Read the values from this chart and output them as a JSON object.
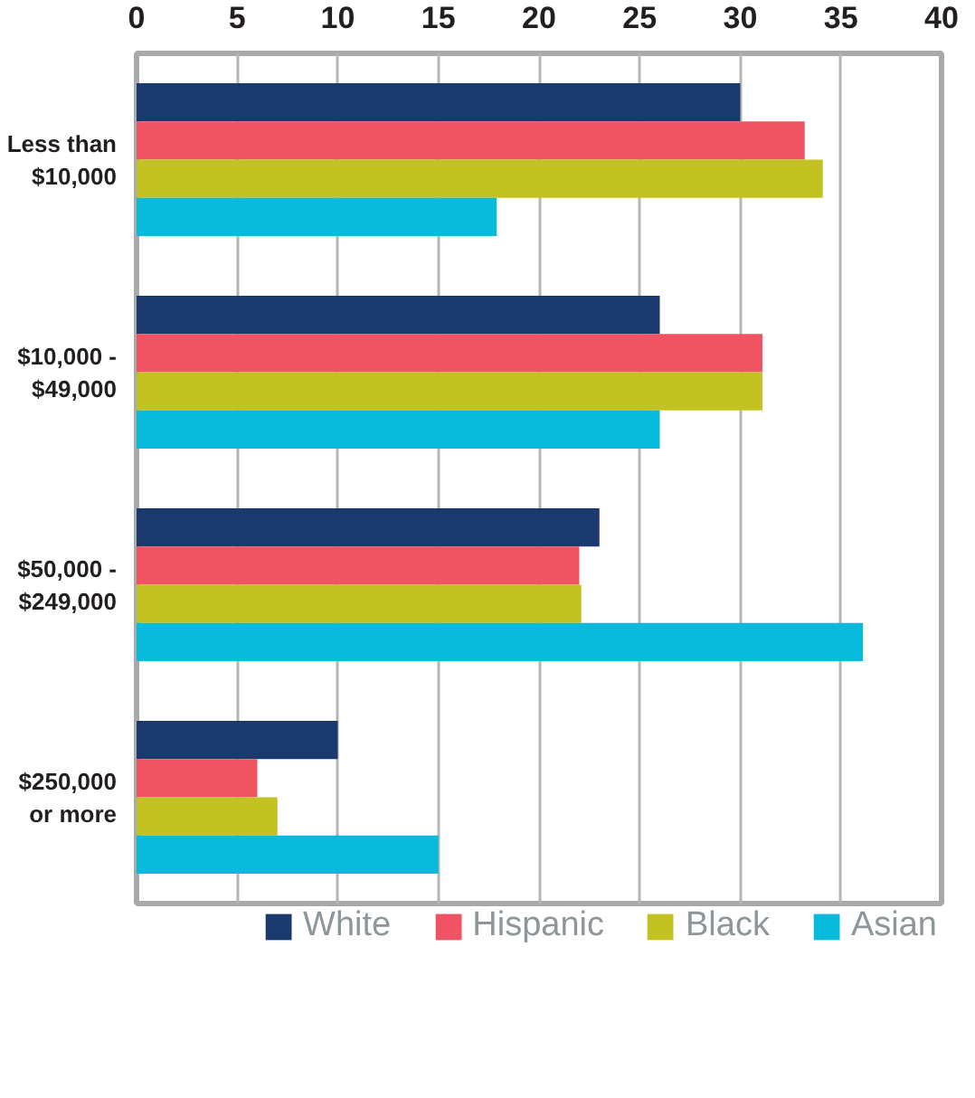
{
  "chart_data": {
    "type": "bar",
    "orientation": "horizontal",
    "categories": [
      "Less than $10,000",
      "$10,000 - $49,000",
      "$50,000 - $249,000",
      "$250,000 or more"
    ],
    "series": [
      {
        "name": "White",
        "color": "#1a3a6e",
        "values": [
          30,
          26,
          23,
          10
        ]
      },
      {
        "name": "Hispanic",
        "color": "#f05463",
        "values": [
          33.2,
          31.1,
          22,
          6
        ]
      },
      {
        "name": "Black",
        "color": "#c4c222",
        "values": [
          34.1,
          31.1,
          22.1,
          7
        ]
      },
      {
        "name": "Asian",
        "color": "#08bbdc",
        "values": [
          17.9,
          26,
          36.1,
          15
        ]
      }
    ],
    "xlim": [
      0,
      40
    ],
    "xticks": [
      0,
      5,
      10,
      15,
      20,
      25,
      30,
      35,
      40
    ],
    "grid": "x",
    "legend": "bottom"
  }
}
